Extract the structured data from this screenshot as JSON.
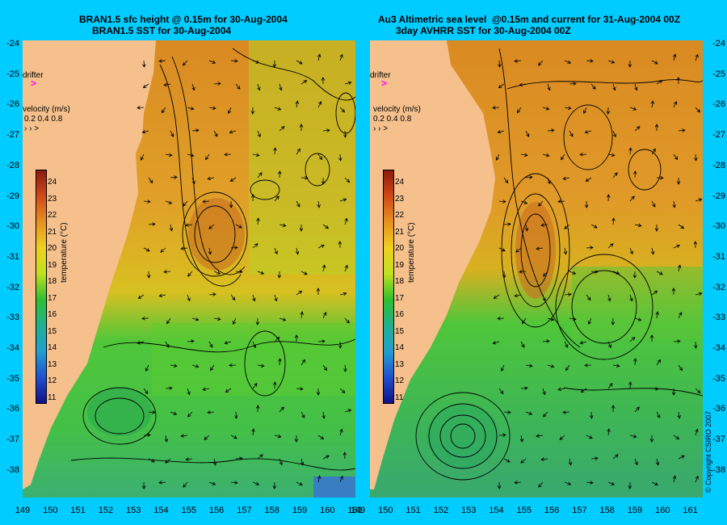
{
  "panels": [
    {
      "title_line1": "BRAN1.5 sfc height @ 0.15m for 30-Aug-2004",
      "title_line2": "BRAN1.5 SST for 30-Aug-2004",
      "drifter_label": "drifter",
      "drifter_symbol": ">",
      "velocity_label": "velocity (m/s)",
      "velocity_scale": "0.2 0.4 0.8",
      "colorbar_label": "temperature (°C)",
      "colorbar_ticks": [
        "24",
        "23",
        "22",
        "21",
        "20",
        "19",
        "18",
        "17",
        "16",
        "15",
        "14",
        "13",
        "12",
        "11"
      ]
    },
    {
      "title_line1": "Au3 Altimetric sea level  @0.15m and current for 31-Aug-2004 00Z",
      "title_line2": "3day AVHRR SST for 30-Aug-2004 00Z",
      "drifter_label": "drifter",
      "drifter_symbol": ">",
      "velocity_label": "velocity (m/s)",
      "velocity_scale": "0.2 0.4 0.8",
      "colorbar_label": "temperature (°C)",
      "colorbar_ticks": [
        "24",
        "23",
        "22",
        "21",
        "20",
        "19",
        "18",
        "17",
        "16",
        "15",
        "14",
        "13",
        "12",
        "11"
      ]
    }
  ],
  "y_axis_labels": [
    "-24",
    "-25",
    "-26",
    "-27",
    "-28",
    "-29",
    "-30",
    "-31",
    "-32",
    "-33",
    "-34",
    "-35",
    "-36",
    "-37",
    "-38"
  ],
  "x_axis_labels": [
    "149",
    "150",
    "151",
    "152",
    "153",
    "154",
    "155",
    "156",
    "157",
    "158",
    "159",
    "160",
    "161"
  ],
  "copyright": "© Copyright CSIRO 2007",
  "colors": {
    "background": "#00ccff",
    "land": "#f5c08c",
    "drifter": "#ff00ff",
    "warm": "#d98a22",
    "mid": "#e8c020",
    "cool": "#33bb44"
  }
}
